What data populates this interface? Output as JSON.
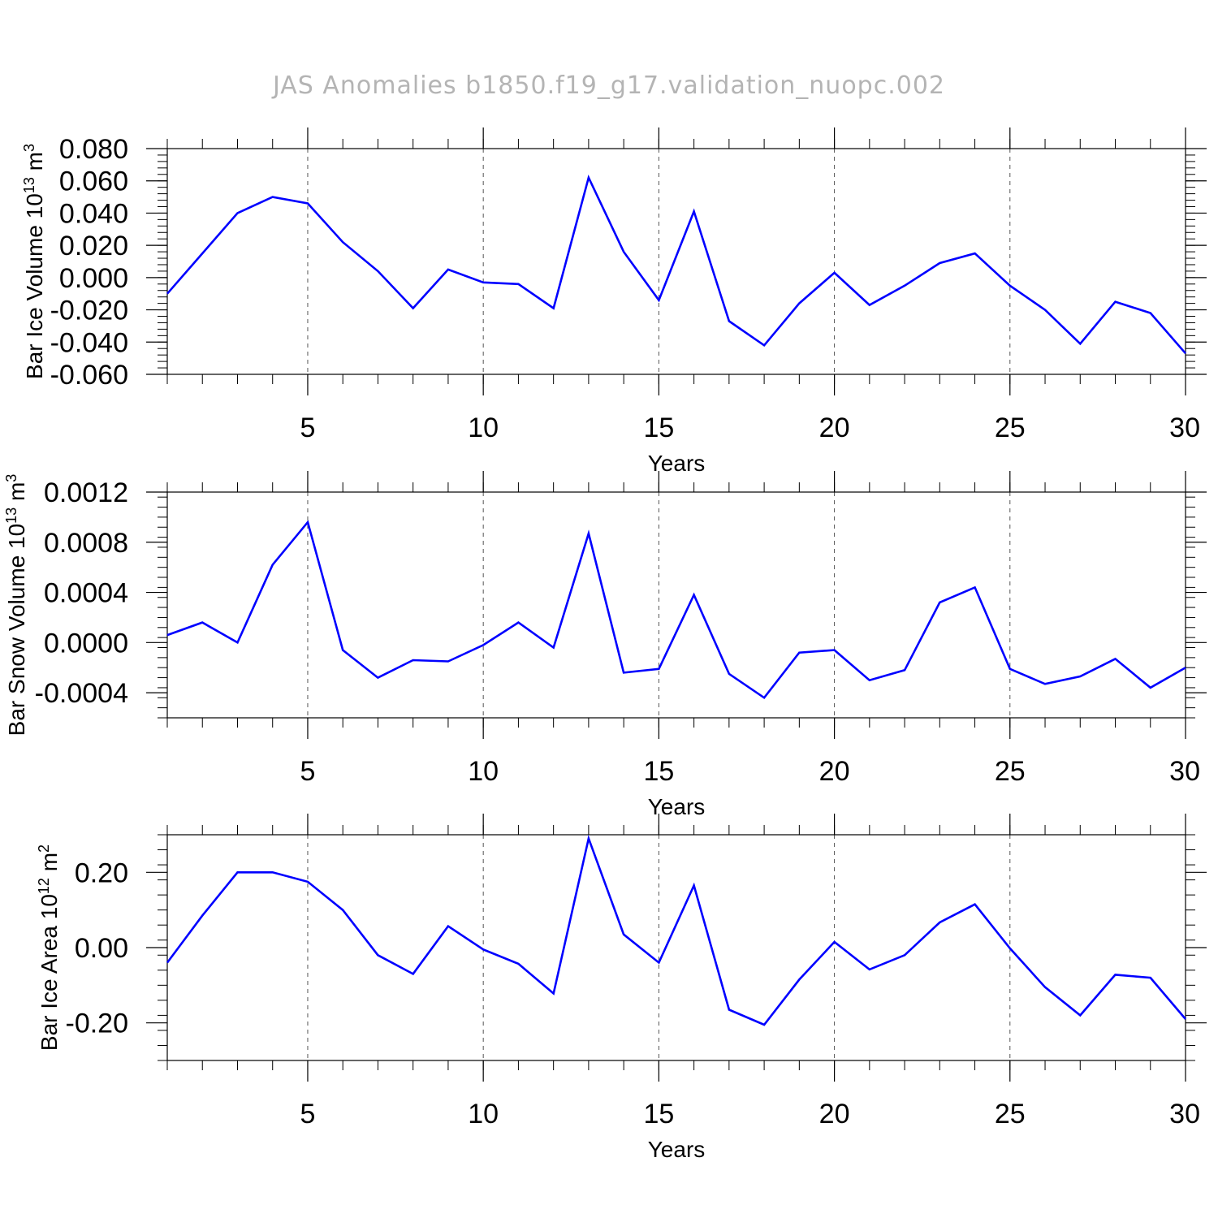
{
  "title": "JAS Anomalies b1850.f19_g17.validation_nuopc.002",
  "colors": {
    "line": "#0000ff",
    "axis": "#000000",
    "grid": "#555555",
    "title": "#b4b4b4"
  },
  "chart_data": [
    {
      "type": "line",
      "title": "",
      "xlabel": "Years",
      "ylabel": {
        "text": "Bar Ice Volume 10",
        "exp": "13",
        "unit": " m",
        "unit_exp": "3"
      },
      "xlim": [
        1,
        30
      ],
      "ylim": [
        -0.06,
        0.08
      ],
      "xticks": [
        5,
        10,
        15,
        20,
        25,
        30
      ],
      "xtick_labels": [
        "5",
        "10",
        "15",
        "20",
        "25",
        "30"
      ],
      "yticks": [
        -0.06,
        -0.04,
        -0.02,
        0.0,
        0.02,
        0.04,
        0.06,
        0.08
      ],
      "ytick_labels": [
        "-0.060",
        "-0.040",
        "-0.020",
        "0.000",
        "0.020",
        "0.040",
        "0.060",
        "0.080"
      ],
      "series": [
        {
          "name": "Bar Ice Volume",
          "x": [
            1,
            2,
            3,
            4,
            5,
            6,
            7,
            8,
            9,
            10,
            11,
            12,
            13,
            14,
            15,
            16,
            17,
            18,
            19,
            20,
            21,
            22,
            23,
            24,
            25,
            26,
            27,
            28,
            29,
            30
          ],
          "values": [
            -0.01,
            0.015,
            0.04,
            0.05,
            0.046,
            0.022,
            0.004,
            -0.019,
            0.005,
            -0.003,
            -0.004,
            -0.019,
            0.062,
            0.016,
            -0.014,
            0.041,
            -0.027,
            -0.042,
            -0.016,
            0.003,
            -0.017,
            -0.005,
            0.009,
            0.015,
            -0.005,
            -0.02,
            -0.041,
            -0.015,
            -0.022,
            -0.047
          ]
        }
      ]
    },
    {
      "type": "line",
      "title": "",
      "xlabel": "Years",
      "ylabel": {
        "text": "Bar Snow Volume 10",
        "exp": "13",
        "unit": " m",
        "unit_exp": "3"
      },
      "xlim": [
        1,
        30
      ],
      "ylim": [
        -0.0006,
        0.0012
      ],
      "xticks": [
        5,
        10,
        15,
        20,
        25,
        30
      ],
      "xtick_labels": [
        "5",
        "10",
        "15",
        "20",
        "25",
        "30"
      ],
      "yticks": [
        -0.0004,
        0.0,
        0.0004,
        0.0008,
        0.0012
      ],
      "ytick_labels": [
        "-0.0004",
        "0.0000",
        "0.0004",
        "0.0008",
        "0.0012"
      ],
      "series": [
        {
          "name": "Bar Snow Volume",
          "x": [
            1,
            2,
            3,
            4,
            5,
            6,
            7,
            8,
            9,
            10,
            11,
            12,
            13,
            14,
            15,
            16,
            17,
            18,
            19,
            20,
            21,
            22,
            23,
            24,
            25,
            26,
            27,
            28,
            29,
            30
          ],
          "values": [
            6e-05,
            0.00016,
            0.0,
            0.00062,
            0.00096,
            -6e-05,
            -0.00028,
            -0.00014,
            -0.00015,
            -2e-05,
            0.00016,
            -4e-05,
            0.00087,
            -0.00024,
            -0.00021,
            0.00038,
            -0.00025,
            -0.00044,
            -8e-05,
            -6e-05,
            -0.0003,
            -0.00022,
            0.00032,
            0.00044,
            -0.00021,
            -0.00033,
            -0.00027,
            -0.00013,
            -0.00036,
            -0.0002
          ]
        }
      ]
    },
    {
      "type": "line",
      "title": "",
      "xlabel": "Years",
      "ylabel": {
        "text": "Bar Ice Area 10",
        "exp": "12",
        "unit": " m",
        "unit_exp": "2"
      },
      "xlim": [
        1,
        30
      ],
      "ylim": [
        -0.3,
        0.3
      ],
      "xticks": [
        5,
        10,
        15,
        20,
        25,
        30
      ],
      "xtick_labels": [
        "5",
        "10",
        "15",
        "20",
        "25",
        "30"
      ],
      "yticks": [
        -0.2,
        0.0,
        0.2
      ],
      "ytick_labels": [
        "-0.20",
        "0.00",
        "0.20"
      ],
      "series": [
        {
          "name": "Bar Ice Area",
          "x": [
            1,
            2,
            3,
            4,
            5,
            6,
            7,
            8,
            9,
            10,
            11,
            12,
            13,
            14,
            15,
            16,
            17,
            18,
            19,
            20,
            21,
            22,
            23,
            24,
            25,
            26,
            27,
            28,
            29,
            30
          ],
          "values": [
            -0.04,
            0.085,
            0.2,
            0.2,
            0.175,
            0.1,
            -0.02,
            -0.07,
            0.057,
            -0.005,
            -0.043,
            -0.122,
            0.29,
            0.035,
            -0.04,
            0.165,
            -0.165,
            -0.205,
            -0.085,
            0.015,
            -0.058,
            -0.02,
            0.067,
            0.115,
            -0.002,
            -0.105,
            -0.18,
            -0.072,
            -0.08,
            -0.19
          ]
        }
      ]
    }
  ]
}
